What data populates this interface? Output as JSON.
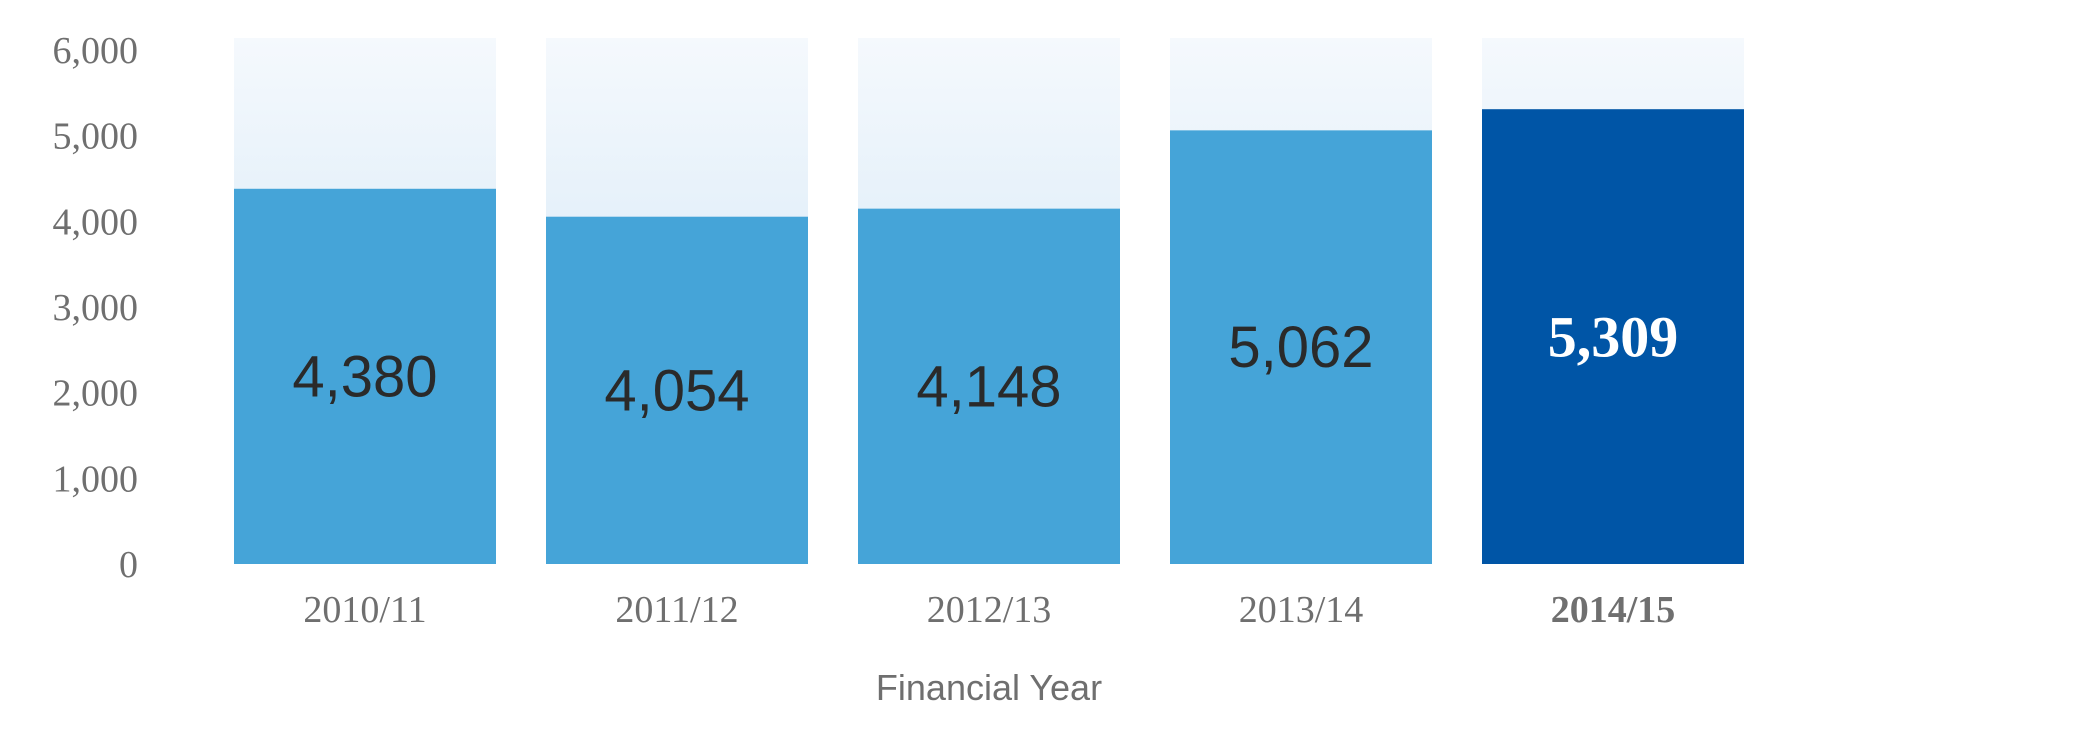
{
  "chart_data": {
    "type": "bar",
    "title": "",
    "xlabel": "Financial Year",
    "ylabel": "",
    "categories": [
      "2010/11",
      "2011/12",
      "2012/13",
      "2013/14",
      "2014/15"
    ],
    "values": [
      4380,
      4054,
      4148,
      5062,
      5309
    ],
    "value_labels": [
      "4,380",
      "4,054",
      "4,148",
      "5,062",
      "5,309"
    ],
    "ylim": [
      0,
      6000
    ],
    "yticks": [
      0,
      1000,
      2000,
      3000,
      4000,
      5000,
      6000
    ],
    "ytick_labels": [
      "0",
      "1,000",
      "2,000",
      "3,000",
      "4,000",
      "5,000",
      "6,000"
    ],
    "highlight_index": 4,
    "grid": false,
    "legend": "none",
    "colors": {
      "bar": "#45a4d8",
      "highlight": "#0055a6",
      "background_fade_top": "#f5f9fd",
      "background_fade_bottom": "#c7e0f3",
      "value_text": "#2a2a2a",
      "value_text_highlight": "#ffffff",
      "axis_text": "#6f6f6f"
    }
  }
}
